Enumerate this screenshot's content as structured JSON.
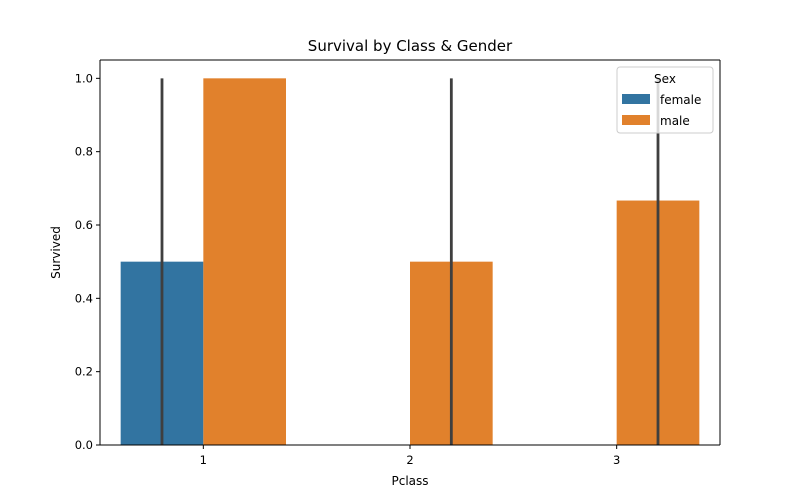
{
  "chart_data": {
    "type": "bar",
    "title": "Survival by Class & Gender",
    "xlabel": "Pclass",
    "ylabel": "Survived",
    "categories": [
      "1",
      "2",
      "3"
    ],
    "ylim": [
      0,
      1.05
    ],
    "yticks": [
      "0.0",
      "0.2",
      "0.4",
      "0.6",
      "0.8",
      "1.0"
    ],
    "grid": false,
    "legend": {
      "title": "Sex",
      "placement": "top-right",
      "entries": [
        "female",
        "male"
      ]
    },
    "series": [
      {
        "name": "female",
        "color": "#3274a1",
        "values": [
          0.5,
          null,
          null
        ],
        "error_bars": [
          [
            0.0,
            1.0
          ],
          null,
          null
        ]
      },
      {
        "name": "male",
        "color": "#e1812c",
        "values": [
          1.0,
          0.5,
          0.6667
        ],
        "error_bars": [
          null,
          [
            0.0,
            1.0
          ],
          [
            0.0,
            1.0
          ]
        ]
      }
    ],
    "error_bar_color": "#3f3f3f"
  }
}
